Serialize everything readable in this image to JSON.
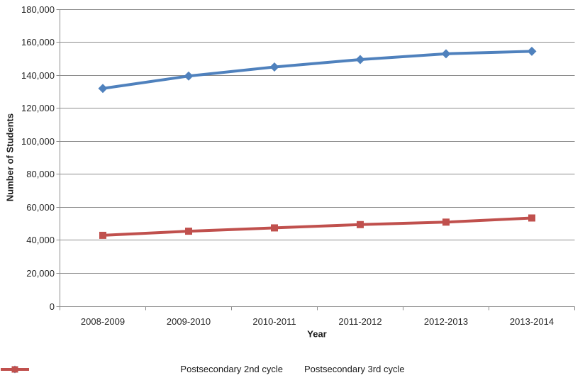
{
  "chart_data": {
    "type": "line",
    "title": "",
    "xlabel": "Year",
    "ylabel": "Number of Students",
    "categories": [
      "2008-2009",
      "2009-2010",
      "2010-2011",
      "2011-2012",
      "2012-2013",
      "2013-2014"
    ],
    "series": [
      {
        "name": "Postsecondary 2nd cycle",
        "color": "#4F81BD",
        "marker": "diamond",
        "values": [
          132000,
          139500,
          145000,
          149500,
          153000,
          154500
        ]
      },
      {
        "name": "Postsecondary 3rd cycle",
        "color": "#C0504D",
        "marker": "square",
        "values": [
          43000,
          45500,
          47500,
          49500,
          51000,
          53500
        ]
      }
    ],
    "ylim": [
      0,
      180000
    ],
    "ytick_step": 20000,
    "yticks": [
      "0",
      "20,000",
      "40,000",
      "60,000",
      "80,000",
      "100,000",
      "120,000",
      "140,000",
      "160,000",
      "180,000"
    ],
    "grid": "horizontal",
    "legend_position": "bottom"
  },
  "colors": {
    "background": "#FFFFFF",
    "gridline": "#8C8C8C",
    "axis": "#8C8C8C",
    "text": "#262626"
  }
}
